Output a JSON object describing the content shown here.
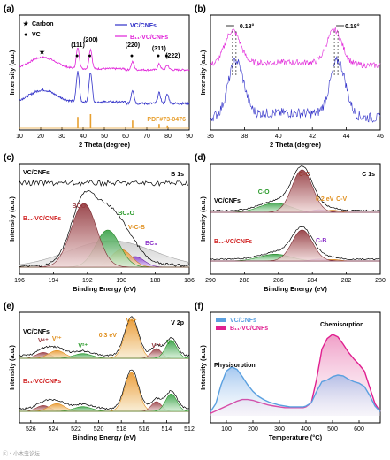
{
  "watermark": "ⓒ‧小木虫论坛",
  "chart_data": [
    {
      "panel": "(a)",
      "type": "line",
      "xlabel": "2 Theta (degree)",
      "ylabel": "Intensity (a.u.)",
      "xlim": [
        10,
        90
      ],
      "xticks": [
        "10",
        "20",
        "30",
        "40",
        "50",
        "60",
        "70",
        "80",
        "90"
      ],
      "legend": [
        "VC/CNFs",
        "B₁₁-VC/CNFs"
      ],
      "series": [
        {
          "name": "B₁₁-VC/CNFs",
          "color": "#e020d8",
          "peaks": [
            {
              "x": 21,
              "y": 0.5,
              "label": "★"
            },
            {
              "x": 37.5,
              "y": 0.9
            },
            {
              "x": 43.5,
              "y": 0.85
            },
            {
              "x": 63.3,
              "y": 0.35
            },
            {
              "x": 75.8,
              "y": 0.25
            },
            {
              "x": 79.7,
              "y": 0.2
            }
          ]
        },
        {
          "name": "VC/CNFs",
          "color": "#3030c8",
          "peaks": [
            {
              "x": 21,
              "y": 0.4
            },
            {
              "x": 37.5,
              "y": 1.0
            },
            {
              "x": 43.5,
              "y": 1.0
            },
            {
              "x": 63.3,
              "y": 0.45
            },
            {
              "x": 75.8,
              "y": 0.35
            },
            {
              "x": 79.7,
              "y": 0.3
            }
          ]
        },
        {
          "name": "PDF#73-0476",
          "color": "#e8a030",
          "type": "stick",
          "x": [
            37.5,
            43.5,
            63.3,
            75.8,
            79.7
          ],
          "values": [
            0.8,
            1.0,
            0.55,
            0.3,
            0.2
          ]
        }
      ],
      "annotations": [
        {
          "label": "Carbon",
          "marker": "★"
        },
        {
          "label": "VC",
          "marker": "●"
        },
        {
          "label": "(111)",
          "x": 37.5
        },
        {
          "label": "(200)",
          "x": 43.5
        },
        {
          "label": "(220)",
          "x": 63.3
        },
        {
          "label": "(311)",
          "x": 75.8
        },
        {
          "label": "(222)",
          "x": 79.7
        },
        {
          "label": "PDF#73-0476"
        }
      ]
    },
    {
      "panel": "(b)",
      "type": "line",
      "xlabel": "2 Theta (degree)",
      "ylabel": "Intensity (a.u.)",
      "xlim": [
        36,
        46
      ],
      "xticks": [
        "36",
        "38",
        "40",
        "42",
        "44",
        "46"
      ],
      "series": [
        {
          "name": "B₁₁-VC/CNFs",
          "color": "#e020d8",
          "peaks": [
            37.3,
            43.3
          ]
        },
        {
          "name": "VC/CNFs",
          "color": "#3030c8",
          "peaks": [
            37.5,
            43.5
          ]
        }
      ],
      "annotations": [
        {
          "label": "0.18°",
          "x": 37.4
        },
        {
          "label": "0.18°",
          "x": 43.4
        }
      ]
    },
    {
      "panel": "(c)",
      "type": "line",
      "title": "B 1s",
      "xlabel": "Binding Energy (eV)",
      "ylabel": "Intensity (a.u.)",
      "xlim": [
        196,
        186
      ],
      "xticks": [
        "196",
        "194",
        "192",
        "190",
        "188",
        "186"
      ],
      "samples": [
        "VC/CNFs",
        "B₁₁-VC/CNFs"
      ],
      "components": [
        {
          "label": "BCO₂",
          "center": 192.2,
          "color": "#9a3a40"
        },
        {
          "label": "BC₂O",
          "center": 190.8,
          "color": "#2a9a2a"
        },
        {
          "label": "V-C-B",
          "center": 190.0,
          "color": "#e09020"
        },
        {
          "label": "BC₃",
          "center": 189.2,
          "color": "#8a30c8"
        }
      ]
    },
    {
      "panel": "(d)",
      "type": "line",
      "title": "C 1s",
      "xlabel": "Binding Energy (eV)",
      "ylabel": "Intensity (a.u.)",
      "xlim": [
        290,
        280
      ],
      "xticks": [
        "290",
        "288",
        "286",
        "284",
        "282",
        "280"
      ],
      "samples": [
        "VC/CNFs",
        "B₁₁-VC/CNFs"
      ],
      "components": [
        {
          "label": "C-C",
          "center": 284.6,
          "color": "#9a3a30"
        },
        {
          "label": "C-O",
          "center": 286.2,
          "color": "#2a9a2a"
        },
        {
          "label": "C-V",
          "center": 282.8,
          "color": "#e09020"
        },
        {
          "label": "C-B",
          "center": 283.6,
          "color": "#8a30c8"
        }
      ],
      "annotations": [
        {
          "label": "0.2 eV"
        }
      ]
    },
    {
      "panel": "(e)",
      "type": "line",
      "title": "V 2p",
      "xlabel": "Binding Energy (eV)",
      "ylabel": "Intensity (a.u.)",
      "xlim": [
        527,
        512
      ],
      "xticks": [
        "526",
        "524",
        "522",
        "520",
        "518",
        "516",
        "514",
        "512"
      ],
      "samples": [
        "VC/CNFs",
        "B₁₁-VC/CNFs"
      ],
      "components": [
        {
          "label": "V⁴⁺",
          "center": 524.9
        },
        {
          "label": "V³⁺",
          "center": 523.7
        },
        {
          "label": "V²⁺",
          "center": 521.4
        },
        {
          "label": "V⁴⁺",
          "center": 517.1
        },
        {
          "label": "V³⁺",
          "center": 514.9
        },
        {
          "label": "V²⁺",
          "center": 513.6
        }
      ],
      "annotations": [
        {
          "label": "0.3 eV"
        }
      ]
    },
    {
      "panel": "(f)",
      "type": "area",
      "xlabel": "Temperature (°C)",
      "ylabel": "Intensity (a.u.)",
      "xlim": [
        40,
        680
      ],
      "xticks": [
        "100",
        "200",
        "300",
        "400",
        "500",
        "600"
      ],
      "legend": [
        "VC/CNFs",
        "B₁₁-VC/CNFs"
      ],
      "series": [
        {
          "name": "VC/CNFs",
          "color": "#5aa0e0",
          "x": [
            40,
            60,
            80,
            100,
            120,
            140,
            160,
            180,
            200,
            220,
            240,
            260,
            280,
            300,
            320,
            340,
            360,
            380,
            390,
            400,
            420,
            440,
            460,
            480,
            500,
            520,
            540,
            560,
            580,
            600,
            620,
            640,
            660,
            680
          ],
          "values": [
            0.05,
            0.15,
            0.38,
            0.55,
            0.6,
            0.57,
            0.48,
            0.38,
            0.3,
            0.24,
            0.2,
            0.17,
            0.15,
            0.13,
            0.12,
            0.11,
            0.11,
            0.11,
            0.11,
            0.12,
            0.16,
            0.3,
            0.42,
            0.44,
            0.48,
            0.5,
            0.49,
            0.45,
            0.42,
            0.4,
            0.36,
            0.25,
            0.12,
            0.05
          ]
        },
        {
          "name": "B₁₁-VC/CNFs",
          "color": "#e02090",
          "x": [
            40,
            60,
            80,
            100,
            120,
            140,
            160,
            180,
            200,
            220,
            240,
            260,
            280,
            300,
            320,
            340,
            360,
            380,
            390,
            400,
            420,
            440,
            460,
            480,
            500,
            520,
            540,
            560,
            580,
            600,
            620,
            640,
            660,
            680
          ],
          "values": [
            0.03,
            0.06,
            0.09,
            0.12,
            0.15,
            0.18,
            0.2,
            0.2,
            0.19,
            0.17,
            0.15,
            0.13,
            0.12,
            0.11,
            0.1,
            0.1,
            0.1,
            0.1,
            0.1,
            0.11,
            0.16,
            0.45,
            0.82,
            0.95,
            1.0,
            0.97,
            0.88,
            0.78,
            0.7,
            0.63,
            0.55,
            0.35,
            0.15,
            0.05
          ]
        }
      ],
      "annotations": [
        {
          "label": "Physisorption"
        },
        {
          "label": "Chemisorption"
        }
      ]
    }
  ]
}
